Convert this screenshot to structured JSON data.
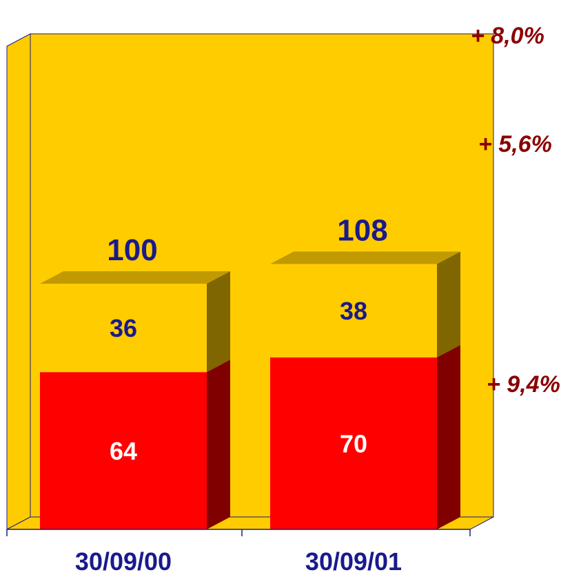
{
  "chart_data": {
    "type": "bar",
    "stacked": true,
    "three_d": true,
    "categories": [
      "30/09/00",
      "30/09/01"
    ],
    "series": [
      {
        "values": [
          64,
          70
        ],
        "color": "#FF0000",
        "side_color": "#800000",
        "label_color": "#FFFFFF"
      },
      {
        "values": [
          36,
          38
        ],
        "color": "#FFCC00",
        "side_color": "#806600",
        "label_color": "#1A1A8C"
      }
    ],
    "totals": [
      "100",
      "108"
    ],
    "total_color": "#1A1A8C",
    "growth": [
      {
        "label": "+ 9,4%",
        "series_index": 0
      },
      {
        "label": "+ 5,6%",
        "series_index": 1
      },
      {
        "label": "+ 8,0%",
        "series_index": "total"
      }
    ],
    "growth_color": "#8B0000",
    "ylim": [
      0,
      125
    ],
    "wall_color": "#FFCC00",
    "floor_color": "#FFCC00",
    "axis_color": "#1A1A8C",
    "grid": false,
    "legend": "none"
  }
}
